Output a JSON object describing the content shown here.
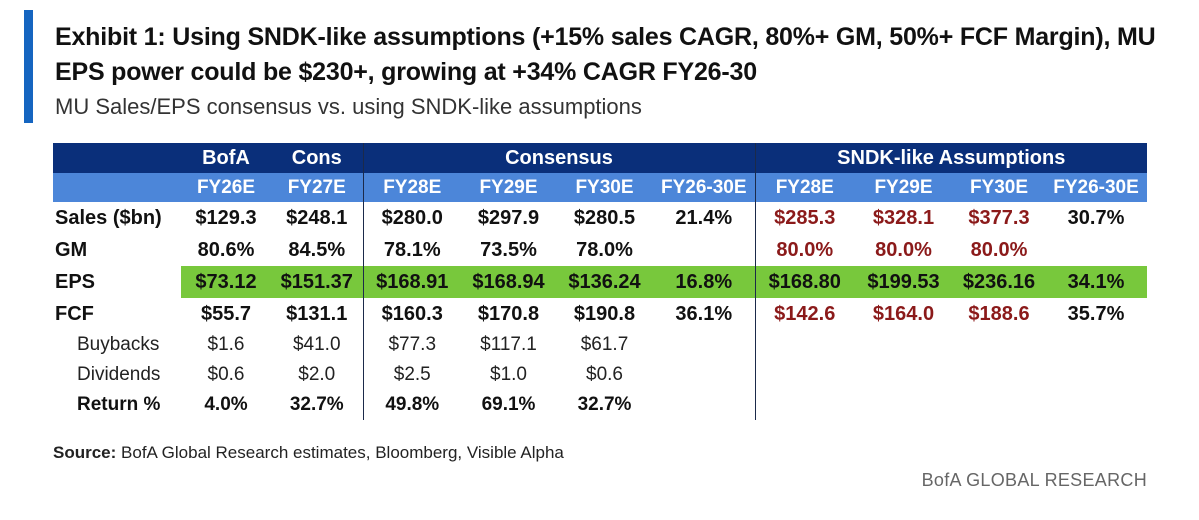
{
  "title": "Exhibit 1: Using SNDK-like assumptions (+15% sales CAGR, 80%+ GM, 50%+ FCF Margin), MU EPS power could be $230+, growing at +34% CAGR FY26-30",
  "subtitle": "MU Sales/EPS consensus vs. using SNDK-like assumptions",
  "header_groups": [
    "BofA",
    "Cons",
    "Consensus",
    "SNDK-like Assumptions"
  ],
  "columns": [
    "FY26E",
    "FY27E",
    "FY28E",
    "FY29E",
    "FY30E",
    "FY26-30E",
    "FY28E",
    "FY29E",
    "FY30E",
    "FY26-30E"
  ],
  "rows": [
    {
      "label": "Sales ($bn)",
      "values": [
        "$129.3",
        "$248.1",
        "$280.0",
        "$297.9",
        "$280.5",
        "21.4%",
        "$285.3",
        "$328.1",
        "$377.3",
        "30.7%"
      ]
    },
    {
      "label": "GM",
      "values": [
        "80.6%",
        "84.5%",
        "78.1%",
        "73.5%",
        "78.0%",
        "",
        "80.0%",
        "80.0%",
        "80.0%",
        ""
      ]
    },
    {
      "label": "EPS",
      "values": [
        "$73.12",
        "$151.37",
        "$168.91",
        "$168.94",
        "$136.24",
        "16.8%",
        "$168.80",
        "$199.53",
        "$236.16",
        "34.1%"
      ]
    },
    {
      "label": "FCF",
      "values": [
        "$55.7",
        "$131.1",
        "$160.3",
        "$170.8",
        "$190.8",
        "36.1%",
        "$142.6",
        "$164.0",
        "$188.6",
        "35.7%"
      ]
    },
    {
      "label": "Buybacks",
      "values": [
        "$1.6",
        "$41.0",
        "$77.3",
        "$117.1",
        "$61.7"
      ]
    },
    {
      "label": "Dividends",
      "values": [
        "$0.6",
        "$2.0",
        "$2.5",
        "$1.0",
        "$0.6"
      ]
    },
    {
      "label": "Return %",
      "values": [
        "4.0%",
        "32.7%",
        "49.8%",
        "69.1%",
        "32.7%"
      ]
    }
  ],
  "source_label": "Source:",
  "source_text": " BofA Global Research estimates, Bloomberg, Visible Alpha",
  "brand": "BofA GLOBAL RESEARCH",
  "colors": {
    "accent_bar": "#1565c0",
    "header_dark": "#0a2f7a",
    "header_light": "#4c86d9",
    "eps_highlight": "#78c83c",
    "sndk_values": "#8b1a1a"
  }
}
